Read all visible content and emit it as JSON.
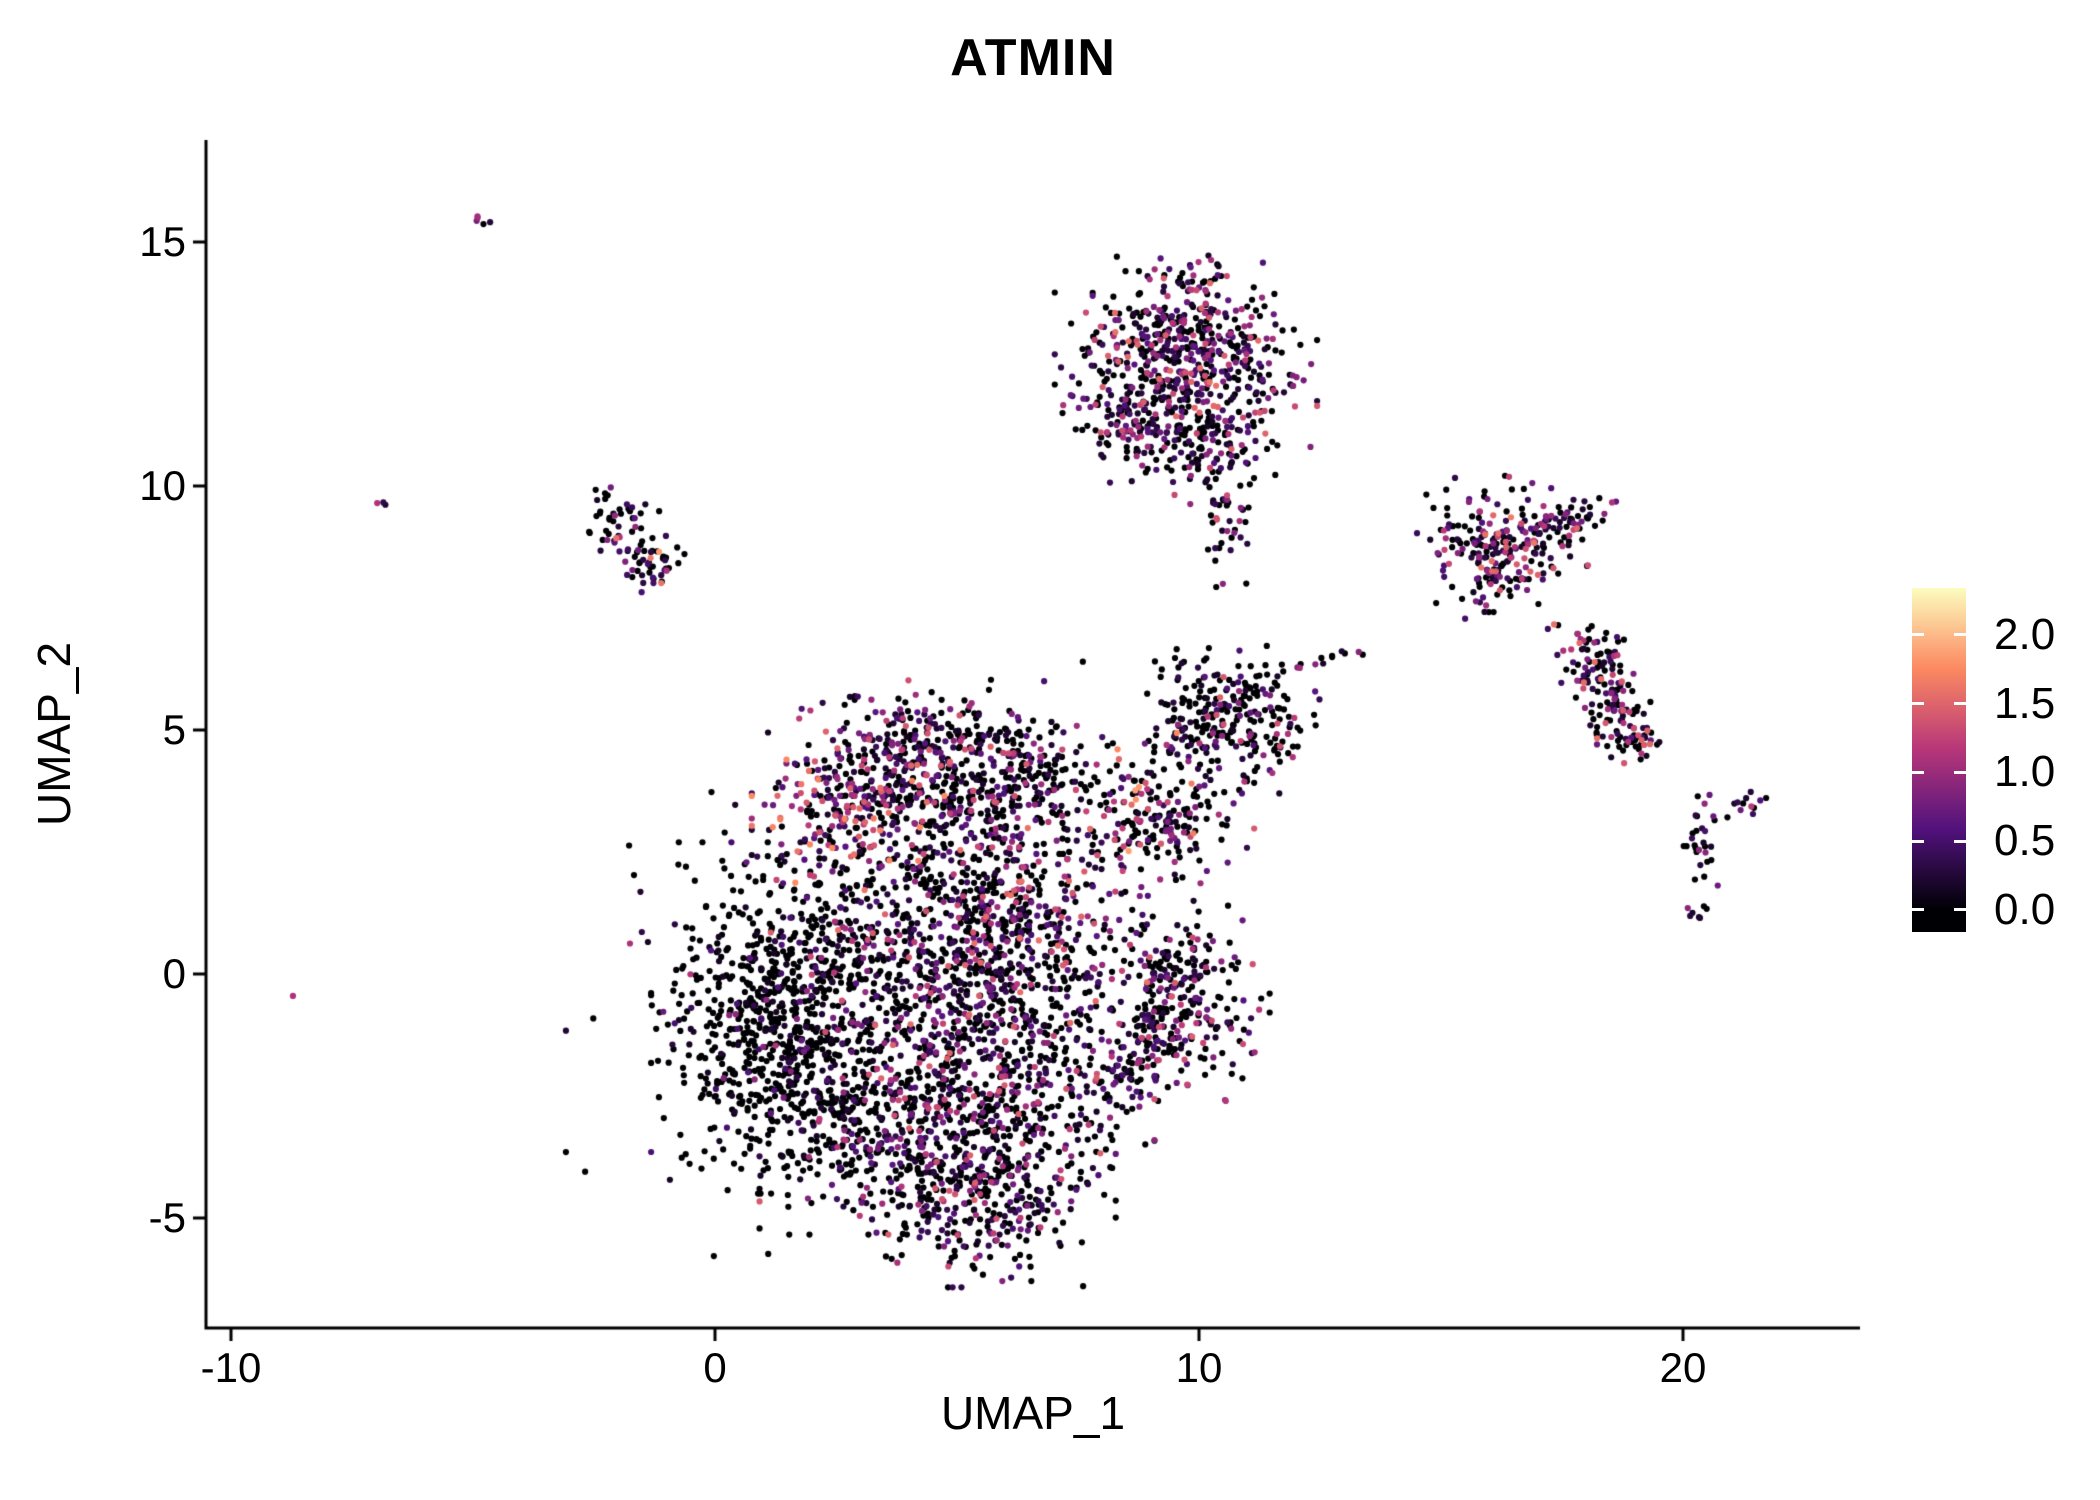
{
  "title": "ATMIN",
  "chart_data": {
    "type": "scatter",
    "title": "ATMIN",
    "xlabel": "UMAP_1",
    "ylabel": "UMAP_2",
    "xlim": [
      -10.5,
      23.6
    ],
    "ylim": [
      -7.2,
      17.0
    ],
    "grid": false,
    "x_ticks": {
      "values": [
        -10,
        0,
        10,
        20
      ],
      "labels": [
        "-10",
        "0",
        "10",
        "20"
      ]
    },
    "y_ticks": {
      "values": [
        15,
        10,
        5,
        0,
        -5
      ],
      "labels": [
        "15",
        "10",
        "5",
        "0",
        "-5"
      ]
    },
    "legend": {
      "position": "right",
      "colormap": "magma",
      "stops": [
        "#000004",
        "#51127c",
        "#b73779",
        "#fc8961",
        "#fcfdbf"
      ],
      "vmax": 2.34,
      "ticks": {
        "values": [
          0,
          0.5,
          1,
          1.5,
          2
        ],
        "labels": [
          "0.0",
          "0.5",
          "1.0",
          "1.5",
          "2.0"
        ]
      }
    },
    "point_color_zero": "#000004",
    "clusters": [
      {
        "name": "tiny-topleft",
        "cx": -4.75,
        "cy": 15.45,
        "rx": 0.22,
        "ry": 0.07,
        "rot": -35,
        "n": 5,
        "p0": 0.35,
        "emax": 1.1,
        "gamma": 1.5
      },
      {
        "name": "dot-left-upper",
        "cx": -6.85,
        "cy": 9.7,
        "rx": 0.12,
        "ry": 0.08,
        "rot": 0,
        "n": 3,
        "p0": 0.3,
        "emax": 1.3,
        "gamma": 1.0
      },
      {
        "name": "left-small-a",
        "cx": -2.0,
        "cy": 9.2,
        "rx": 0.38,
        "ry": 0.28,
        "rot": -20,
        "n": 45,
        "p0": 0.62,
        "emax": 1.8,
        "gamma": 2.2
      },
      {
        "name": "left-small-b",
        "cx": -1.35,
        "cy": 8.45,
        "rx": 0.34,
        "ry": 0.26,
        "rot": -30,
        "n": 45,
        "p0": 0.55,
        "emax": 1.9,
        "gamma": 2.0
      },
      {
        "name": "top-e1",
        "cx": 9.3,
        "cy": 12.9,
        "rx": 0.95,
        "ry": 0.75,
        "rot": 0,
        "n": 270,
        "p0": 0.42,
        "emax": 1.6,
        "gamma": 1.8
      },
      {
        "name": "top-e2",
        "cx": 10.4,
        "cy": 12.4,
        "rx": 0.85,
        "ry": 0.8,
        "rot": 0,
        "n": 220,
        "p0": 0.45,
        "emax": 1.6,
        "gamma": 1.8
      },
      {
        "name": "top-e3",
        "cx": 8.5,
        "cy": 11.6,
        "rx": 0.55,
        "ry": 0.75,
        "rot": 0,
        "n": 120,
        "p0": 0.42,
        "emax": 1.5,
        "gamma": 1.8
      },
      {
        "name": "top-e4",
        "cx": 9.9,
        "cy": 10.9,
        "rx": 0.8,
        "ry": 0.6,
        "rot": 0,
        "n": 130,
        "p0": 0.5,
        "emax": 1.5,
        "gamma": 2.0
      },
      {
        "name": "top-e-tail",
        "cx": 10.5,
        "cy": 9.5,
        "rx": 0.28,
        "ry": 0.65,
        "rot": 10,
        "n": 55,
        "p0": 0.5,
        "emax": 1.4,
        "gamma": 2.0
      },
      {
        "name": "top-e-knot",
        "cx": 9.85,
        "cy": 14.3,
        "rx": 0.22,
        "ry": 0.28,
        "rot": 0,
        "n": 18,
        "p0": 0.4,
        "emax": 1.3,
        "gamma": 1.5
      },
      {
        "name": "right-f-main",
        "cx": 16.3,
        "cy": 8.85,
        "rx": 0.75,
        "ry": 0.55,
        "rot": -15,
        "n": 190,
        "p0": 0.38,
        "emax": 1.7,
        "gamma": 1.8
      },
      {
        "name": "right-f-arm",
        "cx": 17.6,
        "cy": 9.35,
        "rx": 0.55,
        "ry": 0.22,
        "rot": 20,
        "n": 55,
        "p0": 0.4,
        "emax": 1.5,
        "gamma": 1.8
      },
      {
        "name": "right-f-tail",
        "cx": 15.95,
        "cy": 7.95,
        "rx": 0.3,
        "ry": 0.35,
        "rot": 0,
        "n": 40,
        "p0": 0.45,
        "emax": 1.8,
        "gamma": 2.0
      },
      {
        "name": "right-g1",
        "cx": 18.15,
        "cy": 6.35,
        "rx": 0.38,
        "ry": 0.5,
        "rot": 25,
        "n": 80,
        "p0": 0.42,
        "emax": 1.6,
        "gamma": 1.8
      },
      {
        "name": "right-g2",
        "cx": 18.7,
        "cy": 5.35,
        "rx": 0.35,
        "ry": 0.45,
        "rot": 25,
        "n": 70,
        "p0": 0.42,
        "emax": 1.6,
        "gamma": 1.8
      },
      {
        "name": "right-g3",
        "cx": 19.2,
        "cy": 4.85,
        "rx": 0.22,
        "ry": 0.25,
        "rot": 0,
        "n": 25,
        "p0": 0.4,
        "emax": 1.6,
        "gamma": 1.5
      },
      {
        "name": "right-h-main",
        "cx": 20.4,
        "cy": 2.6,
        "rx": 0.22,
        "ry": 0.45,
        "rot": 0,
        "n": 28,
        "p0": 0.5,
        "emax": 1.3,
        "gamma": 2.0
      },
      {
        "name": "right-h-arm",
        "cx": 21.35,
        "cy": 3.4,
        "rx": 0.3,
        "ry": 0.12,
        "rot": 35,
        "n": 12,
        "p0": 0.45,
        "emax": 1.3,
        "gamma": 1.5
      },
      {
        "name": "right-h-drop",
        "cx": 20.35,
        "cy": 1.25,
        "rx": 0.12,
        "ry": 0.22,
        "rot": 0,
        "n": 7,
        "p0": 0.5,
        "emax": 1.2,
        "gamma": 2.0
      },
      {
        "name": "bridge-right",
        "cx": 12.55,
        "cy": 6.45,
        "rx": 0.6,
        "ry": 0.1,
        "rot": 8,
        "n": 12,
        "p0": 0.55,
        "emax": 1.2,
        "gamma": 2.0
      },
      {
        "name": "mid-j1",
        "cx": 10.5,
        "cy": 5.7,
        "rx": 0.7,
        "ry": 0.5,
        "rot": 0,
        "n": 120,
        "p0": 0.6,
        "emax": 1.5,
        "gamma": 2.0
      },
      {
        "name": "mid-j2",
        "cx": 11.3,
        "cy": 4.9,
        "rx": 0.55,
        "ry": 0.5,
        "rot": 0,
        "n": 90,
        "p0": 0.6,
        "emax": 1.5,
        "gamma": 2.0
      },
      {
        "name": "mid-j3",
        "cx": 9.9,
        "cy": 4.9,
        "rx": 0.4,
        "ry": 0.4,
        "rot": 0,
        "n": 50,
        "p0": 0.62,
        "emax": 1.4,
        "gamma": 2.0
      },
      {
        "name": "mid-k",
        "cx": 9.1,
        "cy": 3.3,
        "rx": 0.85,
        "ry": 0.75,
        "rot": 0,
        "n": 210,
        "p0": 0.45,
        "emax": 1.9,
        "gamma": 1.8
      },
      {
        "name": "main-crest",
        "cx": 4.5,
        "cy": 4.95,
        "rx": 1.15,
        "ry": 0.45,
        "rot": 0,
        "n": 190,
        "p0": 0.45,
        "emax": 1.5,
        "gamma": 1.8
      },
      {
        "name": "main-hot",
        "cx": 2.8,
        "cy": 3.4,
        "rx": 0.85,
        "ry": 0.7,
        "rot": 0,
        "n": 260,
        "p0": 0.32,
        "emax": 1.8,
        "gamma": 1.3
      },
      {
        "name": "main-upper-mid",
        "cx": 4.8,
        "cy": 3.8,
        "rx": 0.8,
        "ry": 0.6,
        "rot": 0,
        "n": 170,
        "p0": 0.5,
        "emax": 1.6,
        "gamma": 1.8
      },
      {
        "name": "main-upper-right",
        "cx": 6.3,
        "cy": 3.9,
        "rx": 0.8,
        "ry": 0.6,
        "rot": 0,
        "n": 150,
        "p0": 0.6,
        "emax": 1.5,
        "gamma": 2.0
      },
      {
        "name": "main-left-lobe",
        "cx": 1.2,
        "cy": -0.9,
        "rx": 1.05,
        "ry": 1.5,
        "rot": 0,
        "n": 620,
        "p0": 0.85,
        "emax": 1.2,
        "gamma": 2.5
      },
      {
        "name": "main-left-halo",
        "cx": 1.0,
        "cy": -0.5,
        "rx": 1.7,
        "ry": 2.2,
        "rot": 0,
        "n": 150,
        "p0": 0.82,
        "emax": 1.2,
        "gamma": 2.5
      },
      {
        "name": "main-center",
        "cx": 4.4,
        "cy": 0.7,
        "rx": 1.5,
        "ry": 1.5,
        "rot": 0,
        "n": 650,
        "p0": 0.58,
        "emax": 1.6,
        "gamma": 1.8
      },
      {
        "name": "main-center-right",
        "cx": 6.6,
        "cy": 0.4,
        "rx": 1.1,
        "ry": 1.5,
        "rot": 0,
        "n": 480,
        "p0": 0.5,
        "emax": 1.6,
        "gamma": 1.6
      },
      {
        "name": "main-bottom",
        "cx": 5.0,
        "cy": -2.7,
        "rx": 1.7,
        "ry": 1.1,
        "rot": 0,
        "n": 600,
        "p0": 0.58,
        "emax": 1.5,
        "gamma": 1.8
      },
      {
        "name": "main-bottom-tip",
        "cx": 5.4,
        "cy": -4.5,
        "rx": 1.2,
        "ry": 0.8,
        "rot": 0,
        "n": 320,
        "p0": 0.55,
        "emax": 1.5,
        "gamma": 1.8
      },
      {
        "name": "main-bottom-left",
        "cx": 2.8,
        "cy": -3.4,
        "rx": 0.8,
        "ry": 0.6,
        "rot": 0,
        "n": 120,
        "p0": 0.7,
        "emax": 1.3,
        "gamma": 2.0
      },
      {
        "name": "right-m1",
        "cx": 9.4,
        "cy": 0.2,
        "rx": 0.5,
        "ry": 0.45,
        "rot": 0,
        "n": 80,
        "p0": 0.52,
        "emax": 1.5,
        "gamma": 1.8
      },
      {
        "name": "right-m2",
        "cx": 9.9,
        "cy": -0.8,
        "rx": 0.65,
        "ry": 0.75,
        "rot": 0,
        "n": 160,
        "p0": 0.5,
        "emax": 1.5,
        "gamma": 1.8
      },
      {
        "name": "right-m3",
        "cx": 9.0,
        "cy": -1.4,
        "rx": 0.4,
        "ry": 0.45,
        "rot": 0,
        "n": 60,
        "p0": 0.55,
        "emax": 1.4,
        "gamma": 2.0
      },
      {
        "name": "bridge-center",
        "cx": 8.4,
        "cy": -2.3,
        "rx": 0.45,
        "ry": 0.6,
        "rot": -30,
        "n": 50,
        "p0": 0.6,
        "emax": 1.3,
        "gamma": 2.0
      }
    ],
    "singles": [
      {
        "x": -8.72,
        "y": -0.45,
        "v": 1.1
      },
      {
        "x": 12.1,
        "y": 6.35,
        "v": 0
      },
      {
        "x": 13.3,
        "y": 6.6,
        "v": 0.9
      },
      {
        "x": 7.6,
        "y": 6.4,
        "v": 0
      },
      {
        "x": 6.8,
        "y": 6.0,
        "v": 0.5
      },
      {
        "x": 14.9,
        "y": 7.6,
        "v": 0
      },
      {
        "x": 10.6,
        "y": 1.4,
        "v": 0
      },
      {
        "x": 10.9,
        "y": 1.1,
        "v": 0.7
      },
      {
        "x": -0.6,
        "y": 2.2,
        "v": 0
      },
      {
        "x": 0.2,
        "y": 2.9,
        "v": 0
      }
    ]
  }
}
